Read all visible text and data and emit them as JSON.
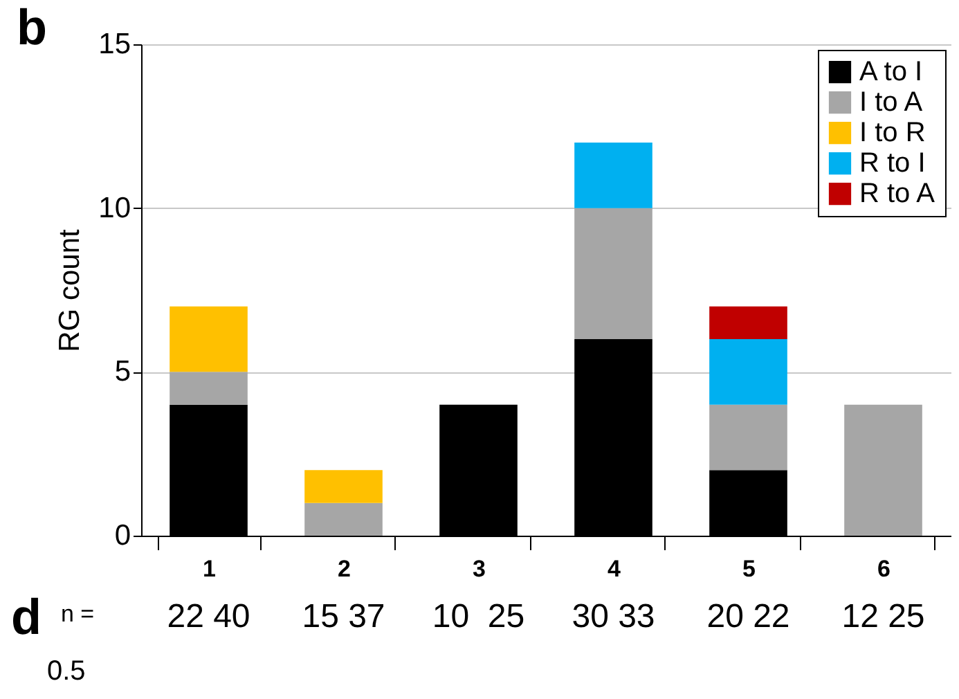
{
  "chart_data": {
    "type": "bar",
    "title": "b",
    "ylabel": "RG count",
    "stacked": true,
    "categories": [
      "1",
      "2",
      "3",
      "4",
      "5",
      "6"
    ],
    "series": [
      {
        "name": "A to I",
        "color": "#000000",
        "values": [
          4,
          0,
          4,
          6,
          2,
          0
        ]
      },
      {
        "name": "I to A",
        "color": "#a6a6a6",
        "values": [
          1,
          1,
          0,
          4,
          2,
          4
        ]
      },
      {
        "name": "I to R",
        "color": "#ffc000",
        "values": [
          2,
          1,
          0,
          0,
          0,
          0
        ]
      },
      {
        "name": "R to I",
        "color": "#00b0f0",
        "values": [
          0,
          0,
          0,
          2,
          2,
          0
        ]
      },
      {
        "name": "R to A",
        "color": "#c00000",
        "values": [
          0,
          0,
          0,
          0,
          1,
          0
        ]
      }
    ],
    "ylim": [
      0,
      15
    ],
    "yticks": [
      0,
      5,
      10,
      15
    ],
    "grid": "y",
    "legend": "top right",
    "annotations": [
      "d",
      "n =",
      "22 40",
      "15 37",
      "10  25",
      "30 33",
      "20 22",
      "12 25",
      "0.5"
    ]
  }
}
